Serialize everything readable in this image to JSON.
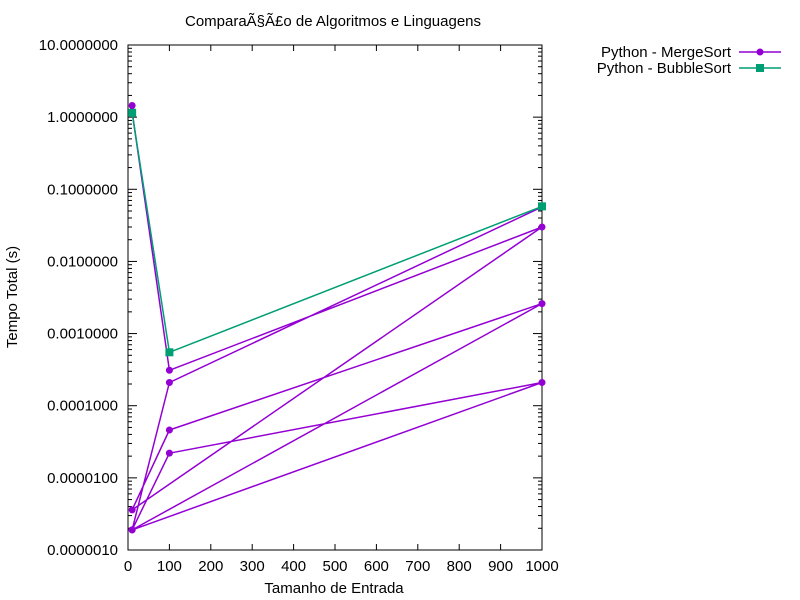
{
  "chart_data": {
    "type": "line",
    "title": "ComparaÃ§Ã£o de Algoritmos e Linguagens",
    "xlabel": "Tamanho de Entrada",
    "ylabel": "Tempo Total (s)",
    "xlim": [
      0,
      1000
    ],
    "ylim": [
      1e-06,
      10
    ],
    "yscale": "log",
    "grid": false,
    "legend_position": "top-right",
    "xticks": [
      0,
      100,
      200,
      300,
      400,
      500,
      600,
      700,
      800,
      900,
      1000
    ],
    "xtick_labels": [
      "0",
      "100",
      "200",
      "300",
      "400",
      "500",
      "600",
      "700",
      "800",
      "900",
      "1000"
    ],
    "yticks": [
      1e-06,
      1e-05,
      0.0001,
      0.001,
      0.01,
      0.1,
      1,
      10
    ],
    "ytick_labels": [
      "0.0000010",
      "0.0000100",
      "0.0001000",
      "0.0010000",
      "0.0100000",
      "0.1000000",
      "1.0000000",
      "10.0000000"
    ],
    "series": [
      {
        "name": "Python - MergeSort",
        "color": "#9400d3",
        "marker": "circle",
        "x": [
          10,
          100,
          1000,
          10,
          100,
          1000,
          10,
          100,
          1000,
          10,
          100,
          1000
        ],
        "y": [
          1.2,
          0.00031,
          0.03,
          3.6e-06,
          4.6e-05,
          0.0026,
          1.9e-06,
          2.2e-05,
          0.00021,
          1.9e-06,
          0.00021,
          0.057
        ]
      },
      {
        "name": "Python - BubbleSort",
        "color": "#009e73",
        "marker": "square",
        "x": [
          10,
          100,
          1000
        ],
        "y": [
          1.15,
          0.00055,
          0.058
        ]
      }
    ],
    "extra_marker": {
      "color": "#9400d3",
      "x": 10,
      "y": 1.45
    }
  }
}
